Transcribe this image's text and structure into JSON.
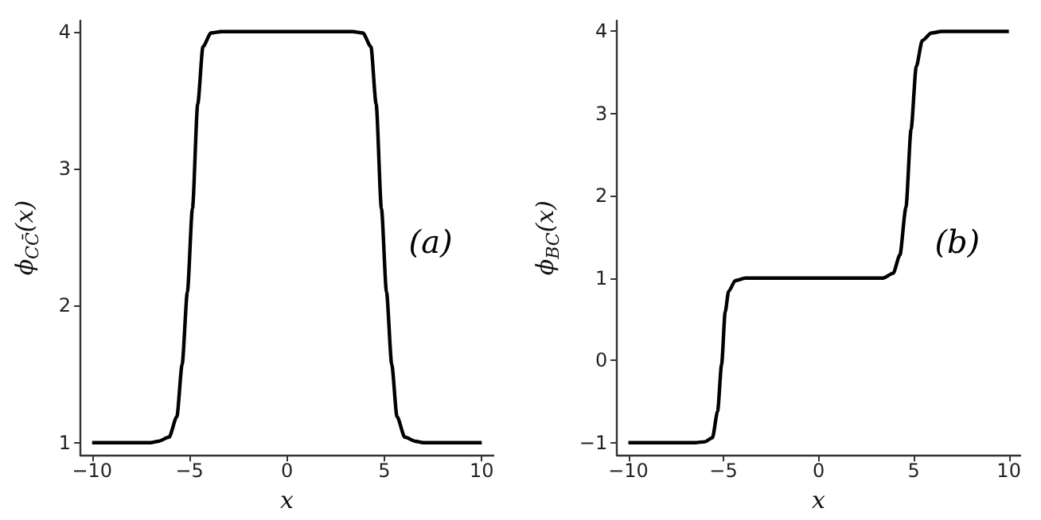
{
  "chart_data": [
    {
      "type": "line",
      "xlabel": "x",
      "ylabel": "ϕ$_{CC̄}$(x)",
      "marker": "none",
      "xlim": [
        -10.6,
        10.6
      ],
      "ylim": [
        0.91,
        4.08
      ],
      "xticks": [
        -10,
        -5,
        0,
        5,
        10
      ],
      "yticks": [
        1,
        2,
        3,
        4
      ],
      "x": [
        -10,
        -7,
        -6.6,
        -6.05,
        -5.65,
        -5.38,
        -5.11,
        -4.85,
        -4.58,
        -4.31,
        -3.9,
        -3.37,
        0,
        3.37,
        3.9,
        4.31,
        4.58,
        4.85,
        5.11,
        5.38,
        5.65,
        6.05,
        6.6,
        7,
        10
      ],
      "series": [
        {
          "color": "#000000",
          "values": [
            1,
            1,
            1.01,
            1.04,
            1.19,
            1.57,
            2.1,
            2.71,
            3.47,
            3.89,
            3.99,
            4,
            4,
            4,
            3.99,
            3.89,
            3.47,
            2.71,
            2.1,
            1.57,
            1.19,
            1.04,
            1.01,
            1,
            1
          ]
        }
      ],
      "annotations": [
        "(a)"
      ]
    },
    {
      "type": "line",
      "xlabel": "x",
      "ylabel": "ϕ$_{BC}$(x)",
      "marker": "none",
      "xlim": [
        -10.6,
        10.6
      ],
      "ylim": [
        -1.15,
        4.13
      ],
      "xticks": [
        -10,
        -5,
        0,
        5,
        10
      ],
      "yticks": [
        -1,
        0,
        1,
        2,
        3,
        4
      ],
      "x": [
        -10,
        -6.5,
        -5.98,
        -5.58,
        -5.31,
        -5.1,
        -4.91,
        -4.73,
        -4.38,
        -3.84,
        0,
        3.39,
        3.92,
        4.27,
        4.59,
        4.86,
        5.13,
        5.45,
        5.93,
        6.47,
        10
      ],
      "series": [
        {
          "color": "#000000",
          "values": [
            -1,
            -1,
            -0.99,
            -0.94,
            -0.62,
            -0.05,
            0.59,
            0.84,
            0.97,
            1,
            1,
            1,
            1.06,
            1.28,
            1.86,
            2.81,
            3.57,
            3.89,
            3.98,
            4,
            4
          ]
        }
      ],
      "annotations": [
        "(b)"
      ]
    }
  ]
}
